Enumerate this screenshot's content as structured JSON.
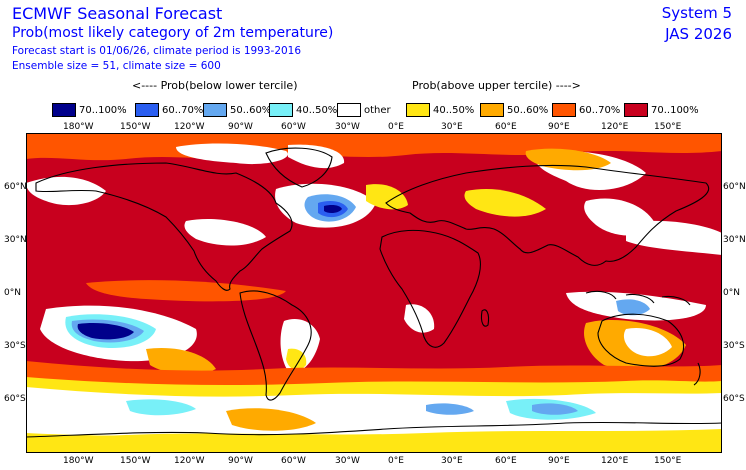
{
  "header": {
    "title": "ECMWF Seasonal Forecast",
    "subtitle": "Prob(most likely category of 2m temperature)",
    "forecast_line": "Forecast start is 01/06/26, climate period is 1993-2016",
    "ensemble_line": "Ensemble size = 51, climate size = 600",
    "system": "System 5",
    "season": "JAS 2026"
  },
  "legend_titles": {
    "below": "<---- Prob(below lower tercile)",
    "above": "Prob(above upper tercile) ---->"
  },
  "legend": [
    {
      "label": "70..100%",
      "color": "#00008b"
    },
    {
      "label": "60..70%",
      "color": "#2a5ef0"
    },
    {
      "label": "50..60%",
      "color": "#64a8f0"
    },
    {
      "label": "40..50%",
      "color": "#78f0f8"
    },
    {
      "label": "other",
      "color": "#ffffff"
    },
    {
      "label": "40..50%",
      "color": "#ffe614"
    },
    {
      "label": "50..60%",
      "color": "#ffaa00"
    },
    {
      "label": "60..70%",
      "color": "#ff5500"
    },
    {
      "label": "70..100%",
      "color": "#c8001e"
    }
  ],
  "axes": {
    "lon_labels": [
      "180°W",
      "150°W",
      "120°W",
      "90°W",
      "60°W",
      "30°W",
      "0°E",
      "30°E",
      "60°E",
      "90°E",
      "120°E",
      "150°E"
    ],
    "lat_labels": [
      "60°N",
      "30°N",
      "0°N",
      "30°S",
      "60°S"
    ]
  }
}
